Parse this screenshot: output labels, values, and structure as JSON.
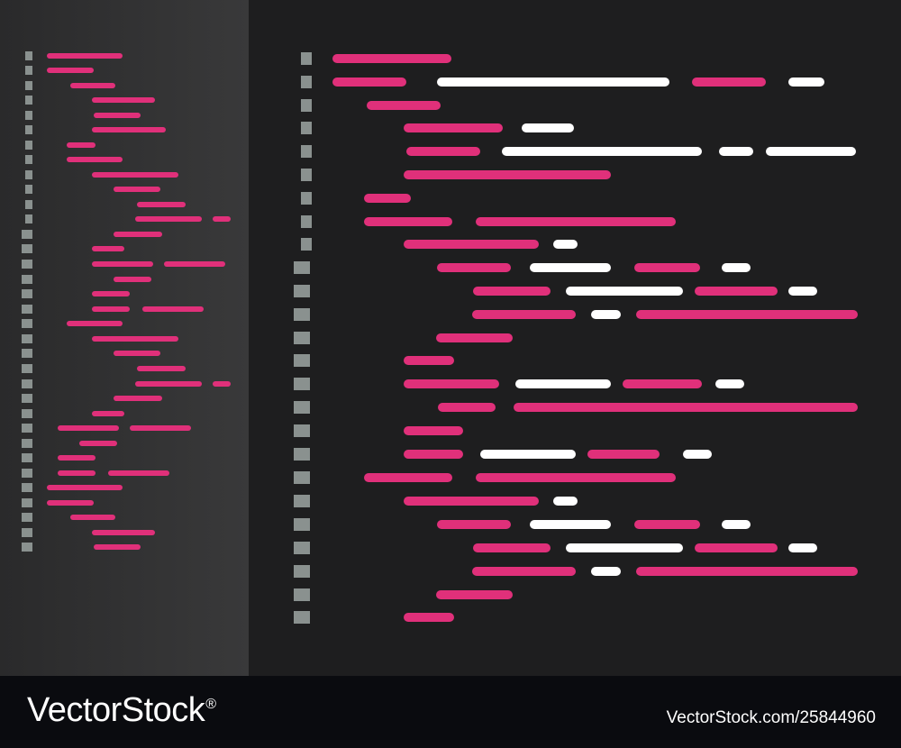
{
  "footer": {
    "brand": "VectorStock",
    "brand_mark": "®",
    "image_id": "VectorStock.com/25844960"
  },
  "colors": {
    "keyword": "#e0307a",
    "text": "#ffffff",
    "gutter": "#8a918f",
    "editor_bg": "#1e1e1f",
    "minimap_bg": "#333334",
    "footer_bg": "#0a0b0f"
  }
}
